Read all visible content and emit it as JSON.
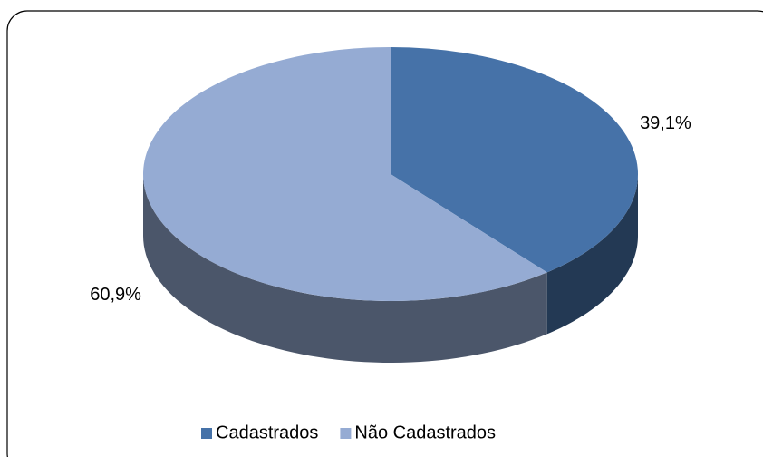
{
  "chart_data": {
    "type": "pie",
    "categories": [
      "Cadastrados",
      "Não Cadastrados"
    ],
    "values": [
      39.1,
      60.9
    ],
    "value_labels": [
      "39,1%",
      "60,9%"
    ],
    "colors": [
      "#4672a8",
      "#95abd3"
    ],
    "legend": "bottom"
  }
}
